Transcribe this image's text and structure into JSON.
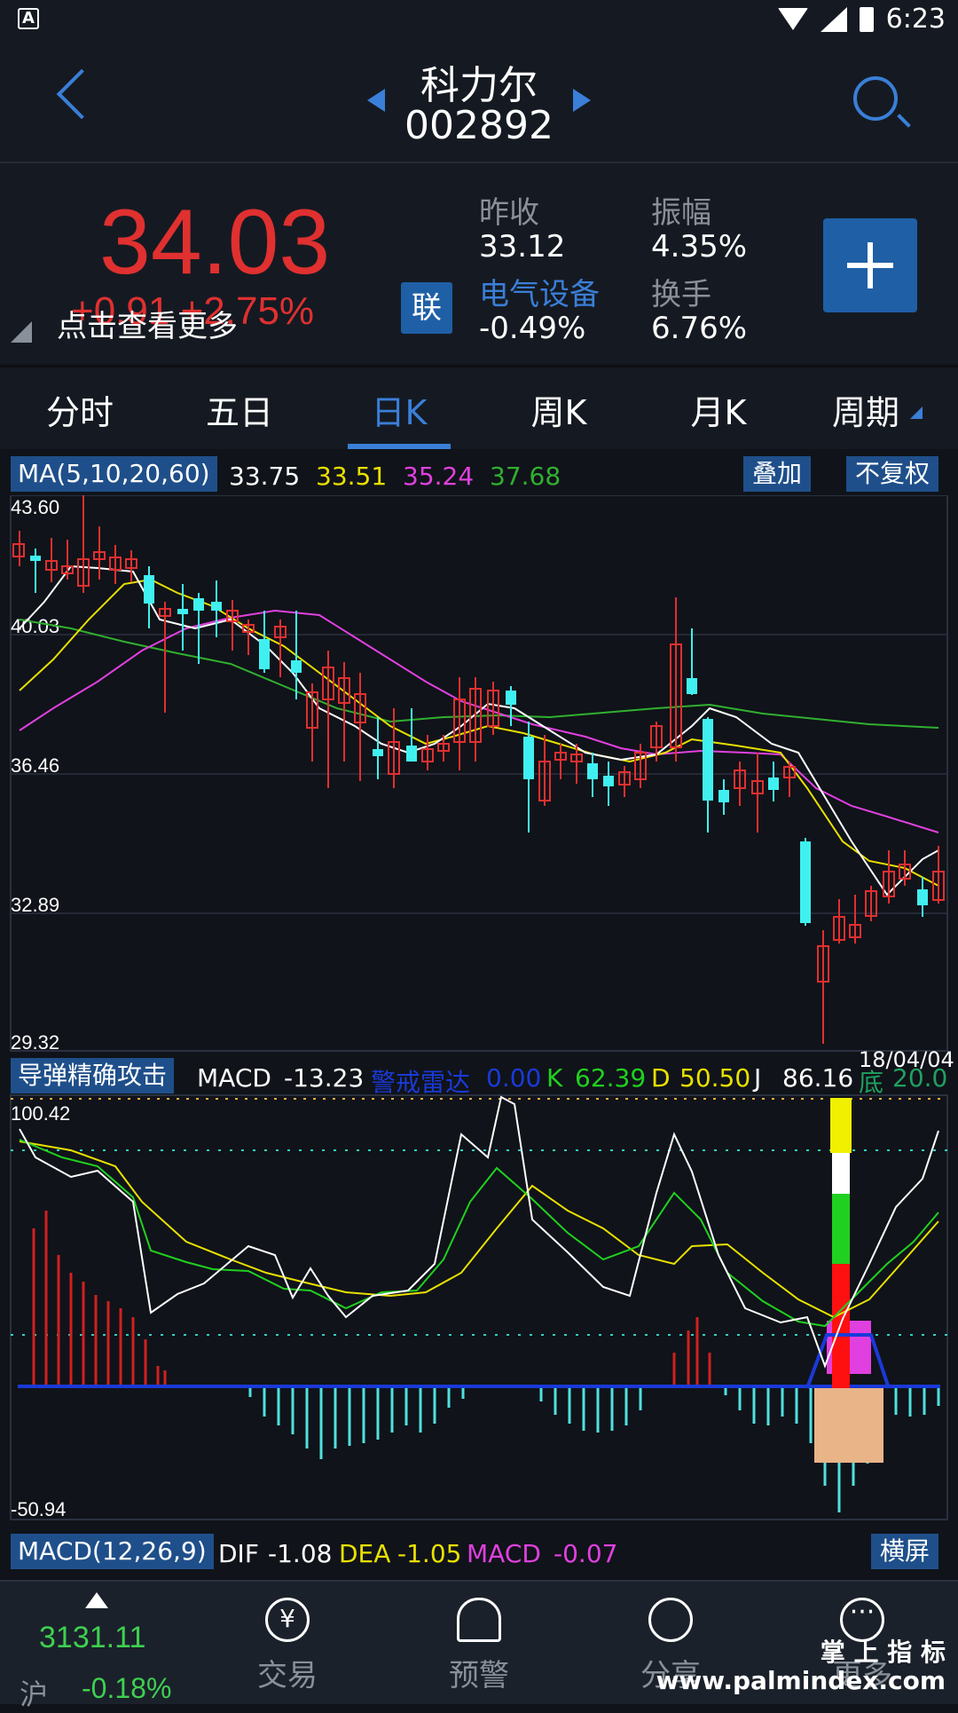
{
  "status_bar": {
    "time": "6:23",
    "app_badge": "A"
  },
  "header": {
    "title": "科力尔",
    "code": "002892"
  },
  "quote": {
    "price": "34.03",
    "change": "+0.91",
    "change_pct": "+2.75%",
    "more_label": "点击查看更多",
    "lian_label": "联",
    "prev_close_label": "昨收",
    "prev_close": "33.12",
    "amplitude_label": "振幅",
    "amplitude": "4.35%",
    "industry_label": "电气设备",
    "industry_chg": "-0.49%",
    "turnover_label": "换手",
    "turnover": "6.76%"
  },
  "tabs": [
    "分时",
    "五日",
    "日K",
    "周K",
    "月K",
    "周期"
  ],
  "active_tab": 2,
  "ma_bar": {
    "label": "MA(5,10,20,60)",
    "ma5": "33.75",
    "ma10": "33.51",
    "ma20": "35.24",
    "ma60": "37.68",
    "overlay_btn": "叠加",
    "adjust_btn": "不复权",
    "colors": {
      "ma5": "#ffffff",
      "ma10": "#e8e000",
      "ma20": "#e040e0",
      "ma60": "#30b030"
    }
  },
  "price_axis": [
    "43.60",
    "40.03",
    "36.46",
    "32.89",
    "29.32"
  ],
  "indicator_bar": {
    "label": "导弹精确攻击",
    "macd_label": "MACD",
    "macd_val": "-13.23",
    "radar_label": "警戒雷达",
    "radar_val": "0.00",
    "k_label": "K",
    "k_val": "62.39",
    "d_label": "D",
    "d_val": "50.50",
    "j_label": "J",
    "j_val": "86.16",
    "bottom_label": "底",
    "bottom_val": "20.0",
    "date": "18/04/04"
  },
  "indicator_axis": {
    "top": "100.42",
    "bottom": "-50.94"
  },
  "macd_bar": {
    "label": "MACD(12,26,9)",
    "dif_label": "DIF",
    "dif": "-1.08",
    "dea_label": "DEA",
    "dea": "-1.05",
    "macd_label": "MACD",
    "macd": "-0.07",
    "landscape_btn": "横屏"
  },
  "nav": {
    "index_value": "3131.11",
    "index_name": "沪",
    "index_chg": "-0.18%",
    "trade": "交易",
    "alert": "预警",
    "share": "分享",
    "more": "更多"
  },
  "watermark": {
    "line1": "掌 上 指 标",
    "line2": "www.palmindex.com"
  }
}
